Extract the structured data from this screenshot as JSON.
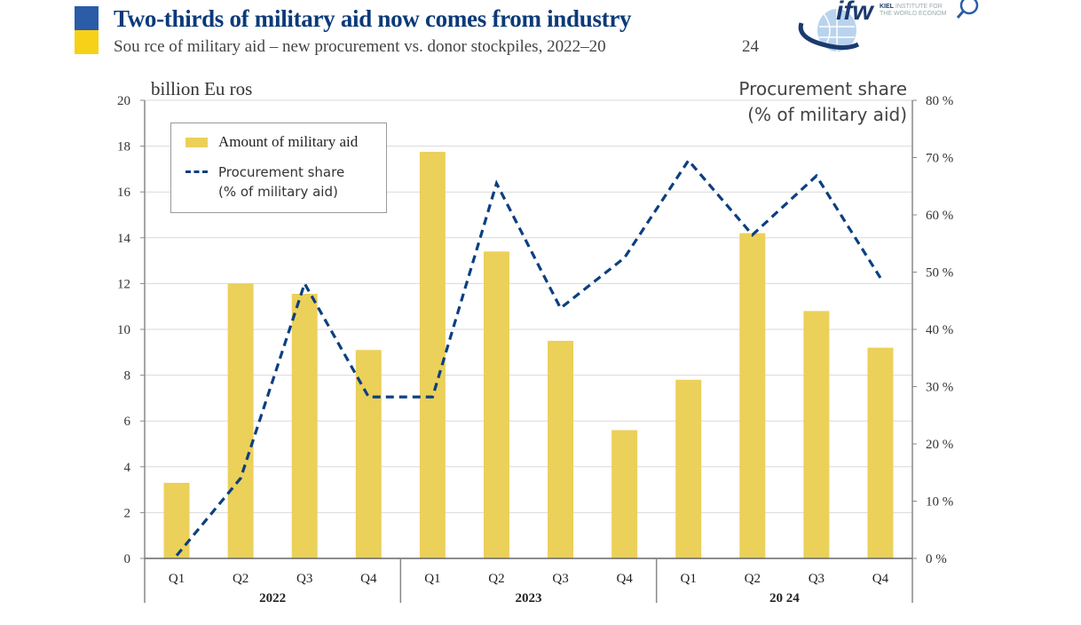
{
  "header": {
    "title": "Two-thirds of military aid now comes from industry",
    "subtitle": "Sou rce  of military aid – new procurement vs. donor stockpiles, 2022–20",
    "subtitle_year_fragment": "24",
    "flag_colors": {
      "top": "#2a5ca8",
      "bottom": "#f7d117"
    }
  },
  "logo": {
    "mark": "ifw",
    "line1_bold": "KIEL",
    "line1": " INSTITUTE FOR",
    "line2": "THE WORLD ECONOM",
    "icon": "search-icon"
  },
  "chart_data": {
    "type": "bar",
    "title": "Two-thirds of military aid now comes from industry",
    "subtitle": "Source of military aid – new procurement vs. donor stockpiles, 2022–2024",
    "categories": [
      "Q1",
      "Q2",
      "Q3",
      "Q4",
      "Q1",
      "Q2",
      "Q3",
      "Q4",
      "Q1",
      "Q2",
      "Q3",
      "Q4"
    ],
    "groups": [
      {
        "label": "2022",
        "span": 4
      },
      {
        "label": "2023",
        "span": 4
      },
      {
        "label": "20 24",
        "span": 4
      }
    ],
    "series": [
      {
        "name": "Amount of military aid",
        "type": "bar",
        "axis": "left",
        "color": "#ebd05a",
        "values": [
          3.3,
          12.0,
          11.55,
          9.1,
          17.75,
          13.4,
          9.5,
          5.6,
          7.8,
          14.2,
          10.8,
          9.2
        ]
      },
      {
        "name": "Procurement share (% of military aid)",
        "type": "line",
        "style": "dashed",
        "axis": "right",
        "color": "#0b3f80",
        "values": [
          0.5,
          14,
          48,
          28.2,
          28.2,
          65.5,
          43.7,
          52.5,
          69.5,
          56.5,
          66.8,
          49
        ]
      }
    ],
    "ylabel": "billion Eu ros",
    "ylim": [
      0,
      20
    ],
    "yticks": [
      "0",
      "2",
      "4",
      "6",
      "8",
      "10",
      "12",
      "14",
      "16",
      "18",
      "20"
    ],
    "ylabel_right_line1": "Procurement share",
    "ylabel_right_line2": "(% of military aid)",
    "ylim_right": [
      0,
      80
    ],
    "yticks_right": [
      "0 %",
      "10 %",
      "20 %",
      "30 %",
      "40 %",
      "50 %",
      "60 %",
      "70 %",
      "80 %"
    ],
    "grid": true,
    "legend": {
      "position": "top-left",
      "entries": [
        "Amount of military aid",
        "Procurement share",
        "(% of military aid)"
      ]
    }
  }
}
